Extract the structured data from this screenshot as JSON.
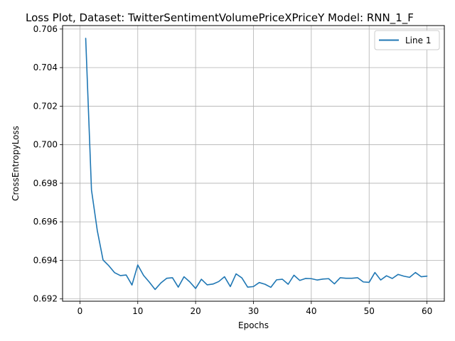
{
  "chart_data": {
    "type": "line",
    "title": "Loss Plot, Dataset: TwitterSentimentVolumePriceXPriceY Model: RNN_1_F",
    "xlabel": "Epochs",
    "ylabel": "CrossEntropyLoss",
    "xlim": [
      -3,
      63
    ],
    "ylim": [
      0.69188,
      0.70618
    ],
    "xticks": [
      0,
      10,
      20,
      30,
      40,
      50,
      60
    ],
    "yticks": [
      0.692,
      0.694,
      0.696,
      0.698,
      0.7,
      0.702,
      0.704,
      0.706
    ],
    "ytick_labels": [
      "0.692",
      "0.694",
      "0.696",
      "0.698",
      "0.700",
      "0.702",
      "0.704",
      "0.706"
    ],
    "grid": true,
    "legend": {
      "placement": "top-right"
    },
    "series": [
      {
        "name": "Line 1",
        "color": "#1f77b4",
        "x": [
          1,
          2,
          3,
          4,
          5,
          6,
          7,
          8,
          9,
          10,
          11,
          12,
          13,
          14,
          15,
          16,
          17,
          18,
          19,
          20,
          21,
          22,
          23,
          24,
          25,
          26,
          27,
          28,
          29,
          30,
          31,
          32,
          33,
          34,
          35,
          36,
          37,
          38,
          39,
          40,
          41,
          42,
          43,
          44,
          45,
          46,
          47,
          48,
          49,
          50,
          51,
          52,
          53,
          54,
          55,
          56,
          57,
          58,
          59,
          60
        ],
        "y": [
          0.70552,
          0.69765,
          0.69555,
          0.69402,
          0.69372,
          0.69336,
          0.69321,
          0.69324,
          0.69272,
          0.69376,
          0.69322,
          0.69287,
          0.69249,
          0.69283,
          0.69307,
          0.6931,
          0.69261,
          0.69315,
          0.69288,
          0.69254,
          0.69302,
          0.69273,
          0.69277,
          0.6929,
          0.69315,
          0.69264,
          0.6933,
          0.69309,
          0.69261,
          0.69264,
          0.69285,
          0.69276,
          0.6926,
          0.69299,
          0.69302,
          0.69276,
          0.69323,
          0.69296,
          0.69306,
          0.69305,
          0.69298,
          0.69303,
          0.69305,
          0.69278,
          0.6931,
          0.69307,
          0.69307,
          0.6931,
          0.69288,
          0.69286,
          0.69337,
          0.69298,
          0.6932,
          0.69306,
          0.69327,
          0.69318,
          0.69312,
          0.69337,
          0.69315,
          0.69318
        ]
      }
    ]
  }
}
